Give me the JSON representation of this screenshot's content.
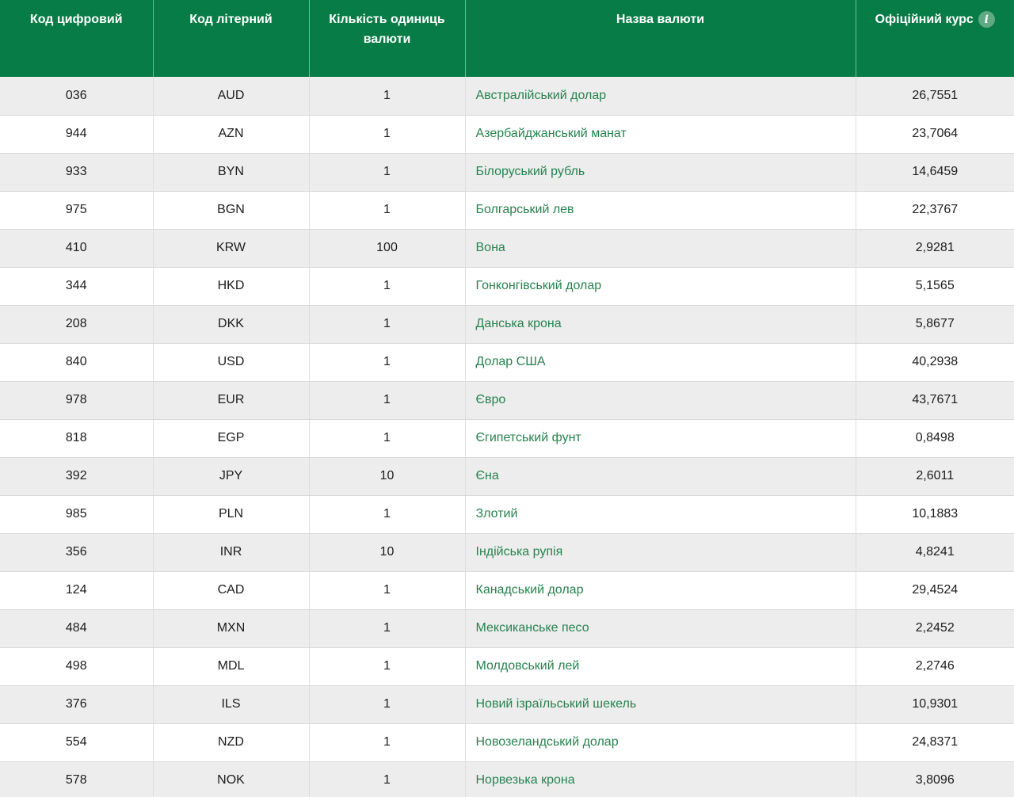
{
  "table": {
    "columns": {
      "numeric_code": "Код цифровий",
      "letter_code": "Код літерний",
      "units": "Кількість одиниць валюти",
      "currency_name": "Назва валюти",
      "official_rate": "Офіційний курс"
    },
    "info_icon": "i",
    "rows": [
      {
        "code": "036",
        "letter": "AUD",
        "units": "1",
        "name": "Австралійський долар",
        "rate": "26,7551"
      },
      {
        "code": "944",
        "letter": "AZN",
        "units": "1",
        "name": "Азербайджанський манат",
        "rate": "23,7064"
      },
      {
        "code": "933",
        "letter": "BYN",
        "units": "1",
        "name": "Білоруський рубль",
        "rate": "14,6459"
      },
      {
        "code": "975",
        "letter": "BGN",
        "units": "1",
        "name": "Болгарський лев",
        "rate": "22,3767"
      },
      {
        "code": "410",
        "letter": "KRW",
        "units": "100",
        "name": "Вона",
        "rate": "2,9281"
      },
      {
        "code": "344",
        "letter": "HKD",
        "units": "1",
        "name": "Гонконгівський долар",
        "rate": "5,1565"
      },
      {
        "code": "208",
        "letter": "DKK",
        "units": "1",
        "name": "Данська крона",
        "rate": "5,8677"
      },
      {
        "code": "840",
        "letter": "USD",
        "units": "1",
        "name": "Долар США",
        "rate": "40,2938"
      },
      {
        "code": "978",
        "letter": "EUR",
        "units": "1",
        "name": "Євро",
        "rate": "43,7671"
      },
      {
        "code": "818",
        "letter": "EGP",
        "units": "1",
        "name": "Єгипетський фунт",
        "rate": "0,8498"
      },
      {
        "code": "392",
        "letter": "JPY",
        "units": "10",
        "name": "Єна",
        "rate": "2,6011"
      },
      {
        "code": "985",
        "letter": "PLN",
        "units": "1",
        "name": "Злотий",
        "rate": "10,1883"
      },
      {
        "code": "356",
        "letter": "INR",
        "units": "10",
        "name": "Індійська рупія",
        "rate": "4,8241"
      },
      {
        "code": "124",
        "letter": "CAD",
        "units": "1",
        "name": "Канадський долар",
        "rate": "29,4524"
      },
      {
        "code": "484",
        "letter": "MXN",
        "units": "1",
        "name": "Мексиканське песо",
        "rate": "2,2452"
      },
      {
        "code": "498",
        "letter": "MDL",
        "units": "1",
        "name": "Молдовський лей",
        "rate": "2,2746"
      },
      {
        "code": "376",
        "letter": "ILS",
        "units": "1",
        "name": "Новий ізраїльський шекель",
        "rate": "10,9301"
      },
      {
        "code": "554",
        "letter": "NZD",
        "units": "1",
        "name": "Новозеландський долар",
        "rate": "24,8371"
      },
      {
        "code": "578",
        "letter": "NOK",
        "units": "1",
        "name": "Норвезька крона",
        "rate": "3,8096"
      }
    ],
    "colors": {
      "header_bg": "#087c46",
      "link_green": "#27824f",
      "row_alt_bg": "#ededed",
      "info_icon_bg": "#5fa983"
    }
  }
}
